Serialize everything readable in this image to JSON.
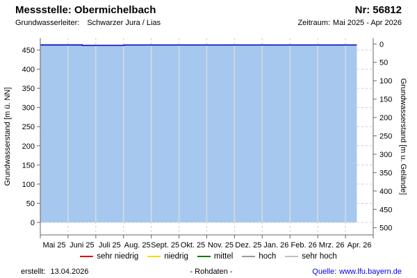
{
  "header": {
    "station_label": "Messstelle:",
    "station_name": "Obermichelbach",
    "number_label": "Nr:",
    "number": "56812",
    "aquifer_label": "Grundwasserleiter:",
    "aquifer": "Schwarzer Jura / Lias",
    "period_label": "Zeitraum:",
    "period": "Mai 2025 - Apr 2026"
  },
  "chart_data": {
    "type": "area",
    "title": "",
    "x_axis": {
      "start": "2025-05-01",
      "end": "2026-05-01",
      "tick_labels": [
        "Mai 25",
        "Juni 25",
        "Juli 25",
        "Aug. 25",
        "Sept. 25",
        "Okt. 25",
        "Nov. 25",
        "Dez. 25",
        "Jan. 26",
        "Feb. 26",
        "Mrz. 26",
        "Apr. 26"
      ]
    },
    "y_left": {
      "label": "Grundwasserstand [m ü. NN]",
      "ticks": [
        0,
        50,
        100,
        150,
        200,
        250,
        300,
        350,
        400,
        450
      ],
      "min": 0,
      "max": 480
    },
    "y_right": {
      "label": "Grundwasserstand [m u. Gelände]",
      "ticks": [
        0,
        50,
        100,
        150,
        200,
        250,
        300,
        350,
        400,
        450,
        500
      ],
      "inverted": true
    },
    "grid": {
      "horizontal_dashed": true,
      "vertical_monthly": true
    },
    "series": [
      {
        "name": "Grundwasserstand Rohdaten",
        "line_color": "#0a0ac8",
        "fill_color": "#a6c8ee",
        "points": [
          {
            "date": "2025-05-01",
            "value": 463.5
          },
          {
            "date": "2025-06-16",
            "value": 463.5
          },
          {
            "date": "2025-06-16",
            "value": 462.2
          },
          {
            "date": "2025-08-01",
            "value": 462.2
          },
          {
            "date": "2025-08-01",
            "value": 463.2
          },
          {
            "date": "2026-04-13",
            "value": 463.2
          }
        ]
      }
    ]
  },
  "legend": {
    "items": [
      {
        "label": "sehr niedrig",
        "color": "#e60000"
      },
      {
        "label": "niedrig",
        "color": "#ffd800"
      },
      {
        "label": "mittel",
        "color": "#007a00"
      },
      {
        "label": "hoch",
        "color": "#999999"
      },
      {
        "label": "sehr hoch",
        "color": "#bfbfbf"
      }
    ]
  },
  "footer": {
    "created_label": "erstellt:",
    "created_date": "13.04.2026",
    "center_text": "- Rohdaten -",
    "source_label": "Quelle:",
    "source": "www.lfu.bayern.de",
    "source_color": "#0000ee"
  }
}
